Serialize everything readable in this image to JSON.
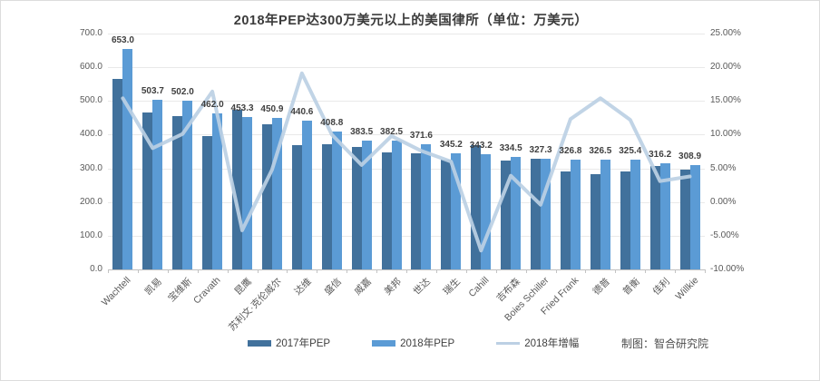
{
  "title": "2018年PEP达300万美元以上的美国律所（单位：万美元）",
  "credit": "制图：智合研究院",
  "chart_data": {
    "type": "bar",
    "subtype": "grouped-bars-with-line",
    "title": "2018年PEP达300万美元以上的美国律所（单位：万美元）",
    "categories": [
      "Wachtell",
      "凯易",
      "宝维斯",
      "Cravath",
      "昆鹰",
      "苏利文·克伦威尔",
      "达维",
      "盛信",
      "威嘉",
      "美邦",
      "世达",
      "瑞生",
      "Cahill",
      "吉布森",
      "Boies Schiller",
      "Fried Frank",
      "德普",
      "普衡",
      "佳利",
      "Willkie"
    ],
    "series": [
      {
        "name": "2017年PEP",
        "type": "bar",
        "axis": "left",
        "color": "#41719C",
        "values": [
          565.7,
          466.2,
          455.9,
          397.0,
          473.4,
          430.1,
          369.9,
          371.8,
          363.5,
          348.5,
          345.5,
          325.7,
          370.0,
          322.0,
          328.6,
          291.0,
          283.0,
          290.0,
          306.7,
          297.5
        ]
      },
      {
        "name": "2018年PEP",
        "type": "bar",
        "axis": "left",
        "color": "#5B9BD5",
        "data_labels": true,
        "values": [
          653.0,
          503.7,
          502.0,
          462.0,
          453.3,
          450.9,
          440.6,
          408.8,
          383.5,
          382.5,
          371.6,
          345.2,
          343.2,
          334.5,
          327.3,
          326.8,
          326.5,
          325.4,
          316.2,
          308.9
        ]
      },
      {
        "name": "2018年增幅",
        "type": "line",
        "axis": "right",
        "color": "#BCD0E4",
        "values": [
          15.4,
          8.0,
          10.1,
          16.4,
          -4.2,
          4.8,
          19.1,
          10.0,
          5.5,
          9.8,
          7.6,
          6.0,
          -7.2,
          3.9,
          -0.4,
          12.3,
          15.4,
          12.2,
          3.1,
          3.8
        ]
      }
    ],
    "left_axis": {
      "min": 0,
      "max": 700,
      "step": 100,
      "tick_labels": [
        "700.0",
        "600.0",
        "500.0",
        "400.0",
        "300.0",
        "200.0",
        "100.0",
        "0.0"
      ]
    },
    "right_axis": {
      "min": -10,
      "max": 25,
      "step": 5,
      "tick_labels": [
        "25.00%",
        "20.00%",
        "15.00%",
        "10.00%",
        "5.00%",
        "0.00%",
        "-5.00%",
        "-10.00%"
      ]
    },
    "grid": true,
    "legend": {
      "position": "bottom",
      "items": [
        "2017年PEP",
        "2018年PEP",
        "2018年增幅"
      ]
    }
  }
}
